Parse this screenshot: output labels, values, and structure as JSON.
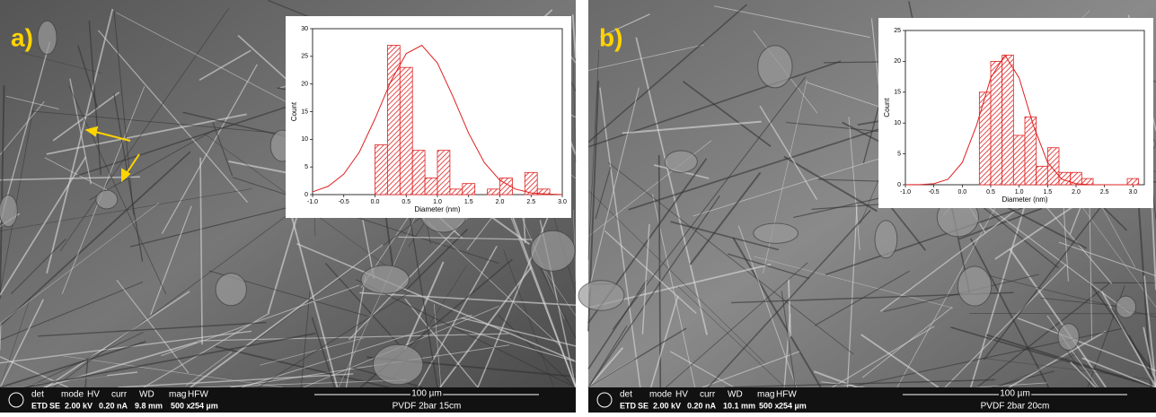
{
  "panels": [
    {
      "label": "a)",
      "info": {
        "headers": [
          "det",
          "mode",
          "HV",
          "curr",
          "WD",
          "mag",
          "HFW"
        ],
        "values": [
          "ETD",
          "SE",
          "2.00 kV",
          "0.20 nA",
          "9.8 mm",
          "500 x",
          "254 µm"
        ],
        "scale": "100 µm",
        "sample": "PVDF 2bar 15cm"
      }
    },
    {
      "label": "b)",
      "info": {
        "headers": [
          "det",
          "mode",
          "HV",
          "curr",
          "WD",
          "mag",
          "HFW"
        ],
        "values": [
          "ETD",
          "SE",
          "2.00 kV",
          "0.20 nA",
          "10.1 mm",
          "500 x",
          "254 µm"
        ],
        "scale": "100 µm",
        "sample": "PVDF 2bar 20cm"
      }
    }
  ],
  "chart_data": [
    {
      "type": "histogram",
      "xlabel": "Diameter (nm)",
      "ylabel": "Count",
      "color": "#e02020",
      "bins": [
        0,
        0.2,
        0.4,
        0.6,
        0.8,
        1.0,
        1.2,
        1.4,
        1.6,
        1.8,
        2.0,
        2.2,
        2.4,
        2.6,
        2.8
      ],
      "values": [
        9,
        27,
        23,
        8,
        3,
        8,
        1,
        2,
        0,
        1,
        3,
        0,
        4,
        1
      ],
      "fit": {
        "x": [
          -1,
          -0.75,
          -0.5,
          -0.25,
          0,
          0.25,
          0.5,
          0.75,
          1,
          1.25,
          1.5,
          1.75,
          2,
          2.25,
          2.5,
          2.75,
          3
        ],
        "values": [
          0.5,
          1.5,
          3.7,
          7.7,
          13.7,
          20.4,
          25.5,
          27,
          23.8,
          17.7,
          11.1,
          5.8,
          2.6,
          1.0,
          0.3,
          0.1,
          0
        ]
      },
      "xlim": [
        -1,
        3
      ],
      "xticks": [
        {
          "value": -1,
          "label": "-1.0"
        },
        {
          "value": -0.5,
          "label": "-0.5"
        },
        {
          "value": 0,
          "label": "0.0"
        },
        {
          "value": 0.5,
          "label": "0.5"
        },
        {
          "value": 1,
          "label": "1.0"
        },
        {
          "value": 1.5,
          "label": "1.5"
        },
        {
          "value": 2,
          "label": "2.0"
        },
        {
          "value": 2.5,
          "label": "2.5"
        },
        {
          "value": 3,
          "label": "3.0"
        }
      ],
      "ylim": [
        0,
        30
      ],
      "yticks": [
        0,
        5,
        10,
        15,
        20,
        25,
        30
      ]
    },
    {
      "type": "histogram",
      "xlabel": "Diameter (nm)",
      "ylabel": "Count",
      "color": "#e02020",
      "bins": [
        0.3,
        0.5,
        0.7,
        0.9,
        1.1,
        1.3,
        1.5,
        1.7,
        1.9,
        2.1,
        2.3,
        2.5,
        2.7,
        2.9,
        3.1
      ],
      "values": [
        15,
        20,
        21,
        8,
        11,
        3,
        6,
        2,
        2,
        1,
        0,
        0,
        0,
        1
      ],
      "fit": {
        "x": [
          -1,
          -0.75,
          -0.5,
          -0.25,
          0,
          0.25,
          0.5,
          0.75,
          1,
          1.25,
          1.5,
          1.75,
          2,
          2.25,
          2.5,
          2.75,
          3
        ],
        "values": [
          0,
          0.02,
          0.16,
          0.9,
          3.6,
          9.6,
          17.3,
          21,
          17.3,
          9.6,
          3.6,
          0.9,
          0.16,
          0.02,
          0,
          0,
          0
        ]
      },
      "xlim": [
        -1,
        3.2
      ],
      "xticks": [
        {
          "value": -1,
          "label": "-1.0"
        },
        {
          "value": -0.5,
          "label": "-0.5"
        },
        {
          "value": 0,
          "label": "0.0"
        },
        {
          "value": 0.5,
          "label": "0.5"
        },
        {
          "value": 1,
          "label": "1.0"
        },
        {
          "value": 1.5,
          "label": "1.5"
        },
        {
          "value": 2,
          "label": "2.0"
        },
        {
          "value": 2.5,
          "label": "2.5"
        },
        {
          "value": 3,
          "label": "3.0"
        }
      ],
      "ylim": [
        0,
        25
      ],
      "yticks": [
        0,
        5,
        10,
        15,
        20,
        25
      ]
    }
  ]
}
